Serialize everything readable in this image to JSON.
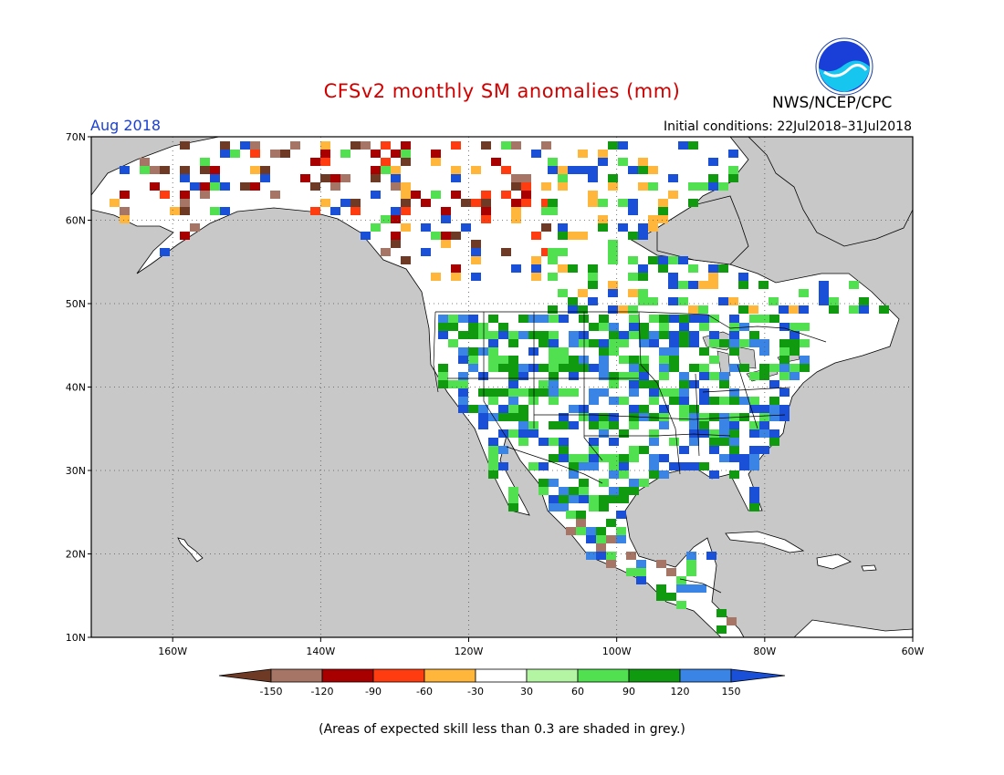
{
  "header": {
    "title": "CFSv2 monthly SM anomalies (mm)",
    "agency": "NWS/NCEP/CPC",
    "logo_text": "NOAA",
    "target_month": "Aug 2018",
    "initial_conditions": "Initial conditions: 22Jul2018–31Jul2018"
  },
  "map": {
    "lon_labels": [
      "160W",
      "140W",
      "120W",
      "100W",
      "80W",
      "60W"
    ],
    "lat_labels": [
      "70N",
      "60N",
      "50N",
      "40N",
      "30N",
      "20N",
      "10N"
    ],
    "lon_values": [
      -160,
      -140,
      -120,
      -100,
      -80,
      -60
    ],
    "lat_values": [
      70,
      60,
      50,
      40,
      30,
      20,
      10
    ],
    "lon_range": [
      -171,
      -60
    ],
    "lat_range": [
      10,
      70
    ],
    "colors": {
      "ocean": "#c8c8c8",
      "land": "#ffffff",
      "grey_mask": "#c8c8c8"
    }
  },
  "legend": {
    "ticks": [
      "-150",
      "-120",
      "-90",
      "-60",
      "-30",
      "30",
      "60",
      "90",
      "120",
      "150"
    ],
    "colors": [
      "#6e3a26",
      "#a67565",
      "#a80000",
      "#ff3b10",
      "#ffb63a",
      "#ffffff",
      "#b4f5a4",
      "#50e050",
      "#109a10",
      "#3a84e6",
      "#1a4fd8"
    ]
  },
  "note": "(Areas of expected skill less than 0.3 are shaded in grey.)"
}
